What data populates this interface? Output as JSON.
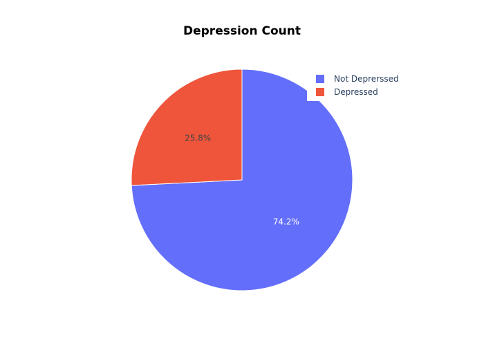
{
  "chart_data": {
    "type": "pie",
    "title": "Depression Count",
    "categories": [
      "Not Deprerssed",
      "Depressed"
    ],
    "values": [
      74.2,
      25.8
    ],
    "labels": [
      "74.2%",
      "25.8%"
    ],
    "colors": [
      "#636efa",
      "#ef553b"
    ],
    "label_colors": [
      "#ffffff",
      "#444444"
    ],
    "legend_position": "top-right",
    "legend": [
      {
        "label": "Not Deprerssed",
        "color": "#636efa"
      },
      {
        "label": "Depressed",
        "color": "#ef553b"
      }
    ]
  }
}
